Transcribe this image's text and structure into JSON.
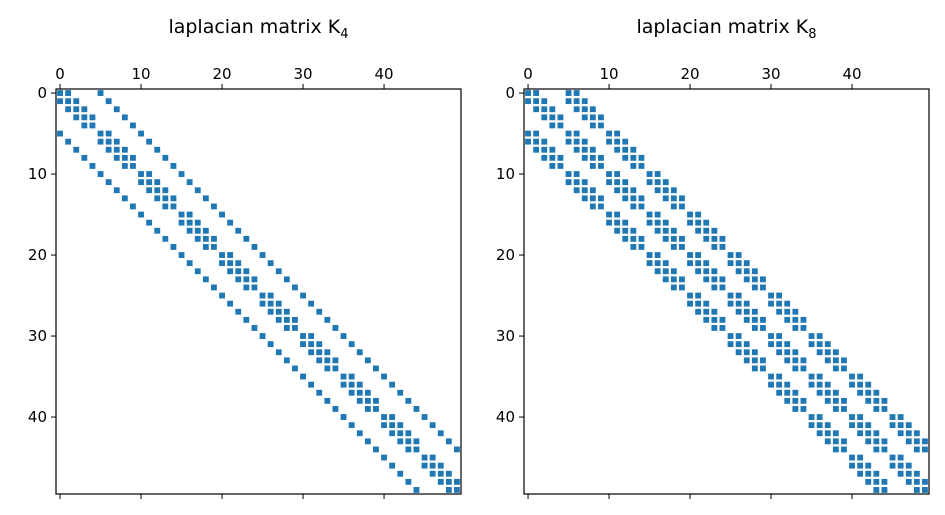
{
  "chart_data": [
    {
      "type": "heatmap",
      "title": "laplacian matrix K",
      "title_subscript": "4",
      "size": 50,
      "x_ticks": [
        0,
        10,
        20,
        30,
        40
      ],
      "y_ticks": [
        0,
        10,
        20,
        30,
        40
      ],
      "x_axis_position": "top",
      "marker_color": "#1f77b4",
      "rule": "nonzero where (i,j) within the same block of 5 are neighbours (|i-j|<=1), and identical in-block position in horizontally adjacent blocks (|block(i)-block(j)|<=1), for block offsets up to 4-spaced; K_4 couples 5-blocks by direct neighbours",
      "block_size": 5,
      "row_block_neighbors": [
        -1,
        0,
        1
      ],
      "col_offsets_within_block": [
        -1,
        0,
        1
      ]
    },
    {
      "type": "heatmap",
      "title": "laplacian matrix K",
      "title_subscript": "8",
      "size": 50,
      "x_ticks": [
        0,
        10,
        20,
        30,
        40
      ],
      "y_ticks": [
        0,
        10,
        20,
        30,
        40
      ],
      "x_axis_position": "top",
      "marker_color": "#1f77b4",
      "rule": "8-neighbour stencil on 5x10 grid",
      "block_size": 5,
      "row_block_neighbors": [
        -1,
        0,
        1
      ],
      "col_offsets_within_block": [
        -1,
        0,
        1
      ]
    }
  ]
}
